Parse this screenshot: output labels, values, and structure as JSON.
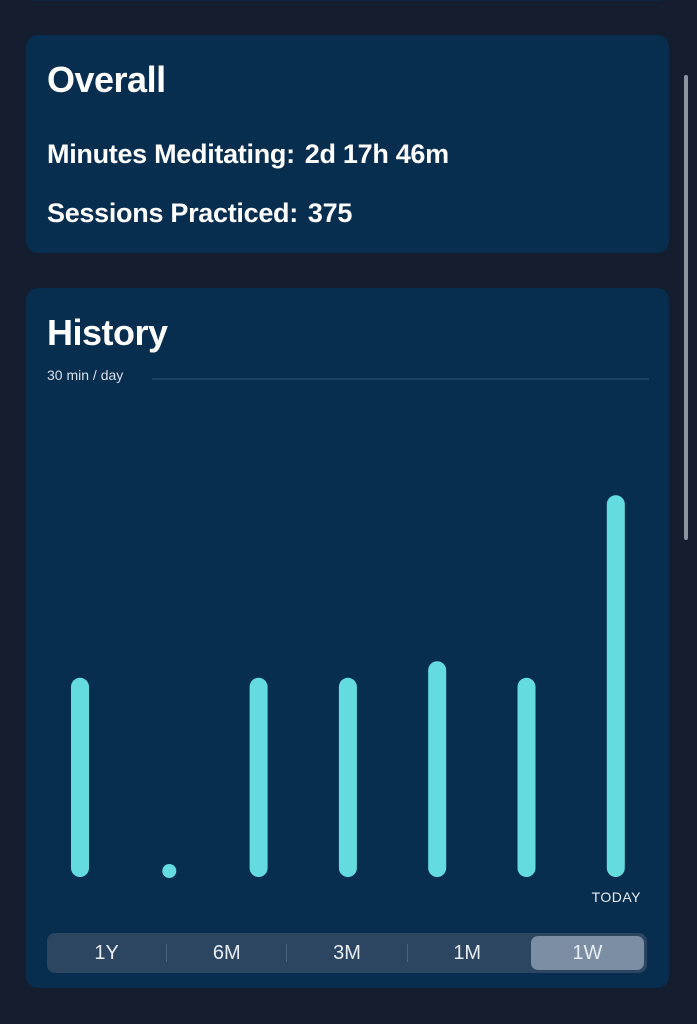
{
  "overall": {
    "title": "Overall",
    "minutes_label": "Minutes Meditating:",
    "minutes_value": "2d 17h 46m",
    "sessions_label": "Sessions Practiced:",
    "sessions_value": "375"
  },
  "history": {
    "title": "History",
    "today_label": "TODAY",
    "ranges": [
      "1Y",
      "6M",
      "3M",
      "1M",
      "1W"
    ],
    "selected_range": "1W"
  },
  "chart_data": {
    "type": "bar",
    "title": "History",
    "reference_line": {
      "value": 30,
      "label": "30 min / day"
    },
    "unit": "min",
    "categories": [
      "",
      "",
      "",
      "",
      "",
      "",
      "TODAY"
    ],
    "values": [
      12,
      0,
      12,
      12,
      13,
      12,
      23
    ],
    "ylim": [
      0,
      30
    ],
    "bar_color": "#64dcdf",
    "grid": false
  },
  "colors": {
    "background": "#141e2e",
    "card": "#072d4f",
    "bar": "#64dcdf",
    "segment_selected": "#7b8ea3"
  }
}
